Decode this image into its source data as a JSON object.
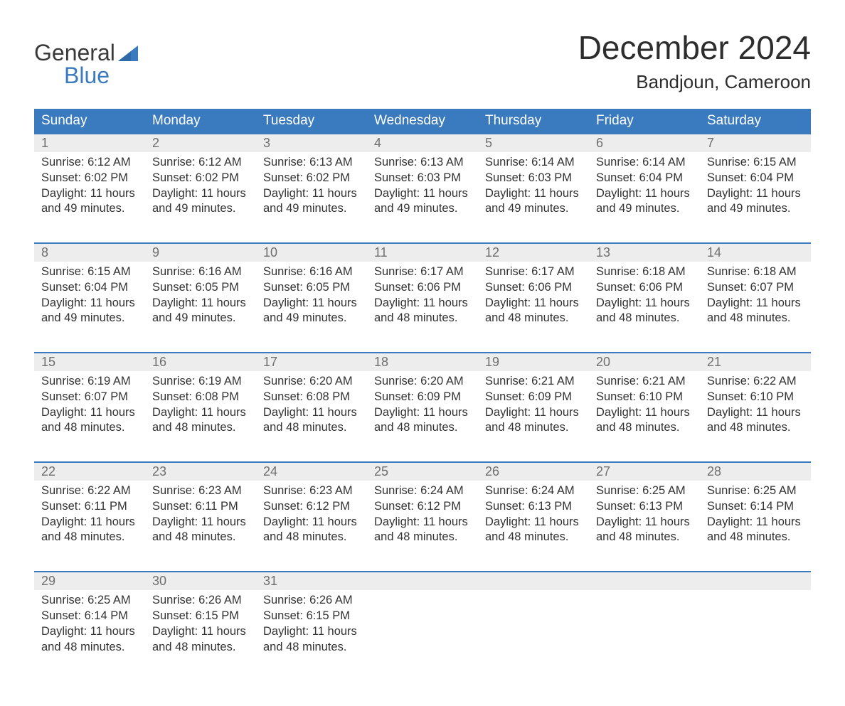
{
  "colors": {
    "header_bg": "#3a7abf",
    "header_text": "#ffffff",
    "daynum_bg": "#ededed",
    "daynum_text": "#6f6f6f",
    "body_text": "#333333",
    "week_border": "#3a7abf",
    "logo_general": "#3a3a3a",
    "logo_blue": "#3a7abf",
    "page_bg": "#ffffff"
  },
  "typography": {
    "title_fontsize": 46,
    "location_fontsize": 26,
    "header_fontsize": 19,
    "daynum_fontsize": 18,
    "body_fontsize": 16.5,
    "logo_fontsize": 32,
    "font_family": "Arial"
  },
  "logo": {
    "word1": "General",
    "word2": "Blue"
  },
  "title": "December 2024",
  "location": "Bandjoun, Cameroon",
  "weekday_headers": [
    "Sunday",
    "Monday",
    "Tuesday",
    "Wednesday",
    "Thursday",
    "Friday",
    "Saturday"
  ],
  "labels": {
    "sunrise": "Sunrise:",
    "sunset": "Sunset:",
    "daylight_prefix": "Daylight:",
    "daylight_suffix1": "hours",
    "daylight_suffix2": "minutes."
  },
  "weeks": [
    [
      {
        "day": "1",
        "sunrise": "6:12 AM",
        "sunset": "6:02 PM",
        "hours": "11",
        "minutes": "49"
      },
      {
        "day": "2",
        "sunrise": "6:12 AM",
        "sunset": "6:02 PM",
        "hours": "11",
        "minutes": "49"
      },
      {
        "day": "3",
        "sunrise": "6:13 AM",
        "sunset": "6:02 PM",
        "hours": "11",
        "minutes": "49"
      },
      {
        "day": "4",
        "sunrise": "6:13 AM",
        "sunset": "6:03 PM",
        "hours": "11",
        "minutes": "49"
      },
      {
        "day": "5",
        "sunrise": "6:14 AM",
        "sunset": "6:03 PM",
        "hours": "11",
        "minutes": "49"
      },
      {
        "day": "6",
        "sunrise": "6:14 AM",
        "sunset": "6:04 PM",
        "hours": "11",
        "minutes": "49"
      },
      {
        "day": "7",
        "sunrise": "6:15 AM",
        "sunset": "6:04 PM",
        "hours": "11",
        "minutes": "49"
      }
    ],
    [
      {
        "day": "8",
        "sunrise": "6:15 AM",
        "sunset": "6:04 PM",
        "hours": "11",
        "minutes": "49"
      },
      {
        "day": "9",
        "sunrise": "6:16 AM",
        "sunset": "6:05 PM",
        "hours": "11",
        "minutes": "49"
      },
      {
        "day": "10",
        "sunrise": "6:16 AM",
        "sunset": "6:05 PM",
        "hours": "11",
        "minutes": "49"
      },
      {
        "day": "11",
        "sunrise": "6:17 AM",
        "sunset": "6:06 PM",
        "hours": "11",
        "minutes": "48"
      },
      {
        "day": "12",
        "sunrise": "6:17 AM",
        "sunset": "6:06 PM",
        "hours": "11",
        "minutes": "48"
      },
      {
        "day": "13",
        "sunrise": "6:18 AM",
        "sunset": "6:06 PM",
        "hours": "11",
        "minutes": "48"
      },
      {
        "day": "14",
        "sunrise": "6:18 AM",
        "sunset": "6:07 PM",
        "hours": "11",
        "minutes": "48"
      }
    ],
    [
      {
        "day": "15",
        "sunrise": "6:19 AM",
        "sunset": "6:07 PM",
        "hours": "11",
        "minutes": "48"
      },
      {
        "day": "16",
        "sunrise": "6:19 AM",
        "sunset": "6:08 PM",
        "hours": "11",
        "minutes": "48"
      },
      {
        "day": "17",
        "sunrise": "6:20 AM",
        "sunset": "6:08 PM",
        "hours": "11",
        "minutes": "48"
      },
      {
        "day": "18",
        "sunrise": "6:20 AM",
        "sunset": "6:09 PM",
        "hours": "11",
        "minutes": "48"
      },
      {
        "day": "19",
        "sunrise": "6:21 AM",
        "sunset": "6:09 PM",
        "hours": "11",
        "minutes": "48"
      },
      {
        "day": "20",
        "sunrise": "6:21 AM",
        "sunset": "6:10 PM",
        "hours": "11",
        "minutes": "48"
      },
      {
        "day": "21",
        "sunrise": "6:22 AM",
        "sunset": "6:10 PM",
        "hours": "11",
        "minutes": "48"
      }
    ],
    [
      {
        "day": "22",
        "sunrise": "6:22 AM",
        "sunset": "6:11 PM",
        "hours": "11",
        "minutes": "48"
      },
      {
        "day": "23",
        "sunrise": "6:23 AM",
        "sunset": "6:11 PM",
        "hours": "11",
        "minutes": "48"
      },
      {
        "day": "24",
        "sunrise": "6:23 AM",
        "sunset": "6:12 PM",
        "hours": "11",
        "minutes": "48"
      },
      {
        "day": "25",
        "sunrise": "6:24 AM",
        "sunset": "6:12 PM",
        "hours": "11",
        "minutes": "48"
      },
      {
        "day": "26",
        "sunrise": "6:24 AM",
        "sunset": "6:13 PM",
        "hours": "11",
        "minutes": "48"
      },
      {
        "day": "27",
        "sunrise": "6:25 AM",
        "sunset": "6:13 PM",
        "hours": "11",
        "minutes": "48"
      },
      {
        "day": "28",
        "sunrise": "6:25 AM",
        "sunset": "6:14 PM",
        "hours": "11",
        "minutes": "48"
      }
    ],
    [
      {
        "day": "29",
        "sunrise": "6:25 AM",
        "sunset": "6:14 PM",
        "hours": "11",
        "minutes": "48"
      },
      {
        "day": "30",
        "sunrise": "6:26 AM",
        "sunset": "6:15 PM",
        "hours": "11",
        "minutes": "48"
      },
      {
        "day": "31",
        "sunrise": "6:26 AM",
        "sunset": "6:15 PM",
        "hours": "11",
        "minutes": "48"
      },
      null,
      null,
      null,
      null
    ]
  ]
}
